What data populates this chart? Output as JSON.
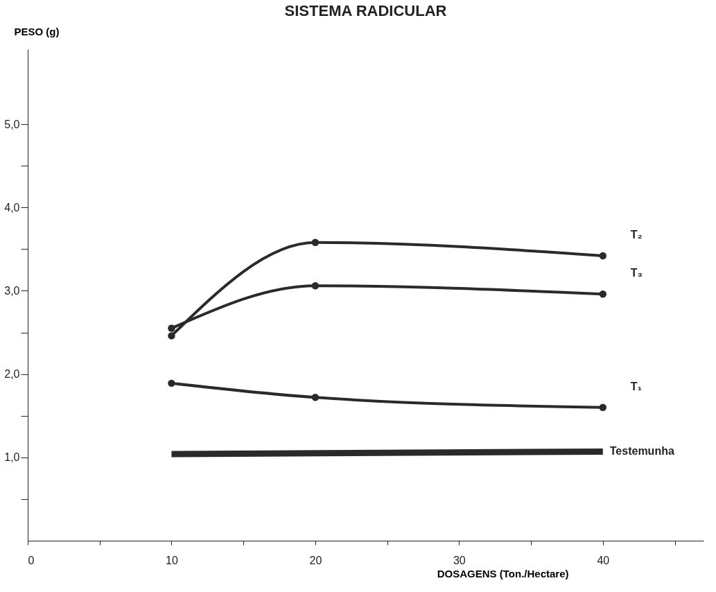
{
  "chart_data": {
    "type": "line",
    "title": "SISTEMA  RADICULAR",
    "xlabel": "DOSAGENS (Ton./Hectare)",
    "ylabel": "PESO (g)",
    "x": [
      10,
      20,
      40
    ],
    "series": [
      {
        "name": "T₂",
        "color": "#2a2a2a",
        "values": [
          2.46,
          3.58,
          3.42
        ]
      },
      {
        "name": "T₃",
        "color": "#2a2a2a",
        "values": [
          2.55,
          3.06,
          2.96
        ]
      },
      {
        "name": "T₁",
        "color": "#2a2a2a",
        "values": [
          1.89,
          1.72,
          1.6
        ]
      },
      {
        "name": "Testemunha",
        "color": "#2a2a2a",
        "x": [
          10,
          40
        ],
        "values": [
          1.04,
          1.07
        ],
        "marker": "none"
      }
    ],
    "xlim": [
      0,
      47
    ],
    "ylim": [
      0,
      5.9
    ],
    "xticks": [
      0,
      {
        "value": 5,
        "label": null
      },
      10,
      {
        "value": 15,
        "label": null
      },
      20,
      {
        "value": 25,
        "label": null
      },
      30,
      {
        "value": 35,
        "label": null
      },
      40,
      {
        "value": 45,
        "label": null
      }
    ],
    "yticks": [
      {
        "value": 0.5,
        "label": null
      },
      {
        "value": 1,
        "label": "1,0"
      },
      {
        "value": 1.5,
        "label": null
      },
      {
        "value": 2,
        "label": "2,0"
      },
      {
        "value": 2.5,
        "label": null
      },
      {
        "value": 3,
        "label": "3,0"
      },
      {
        "value": 3.5,
        "label": null
      },
      {
        "value": 4,
        "label": "4,0"
      },
      {
        "value": 4.5,
        "label": null
      },
      {
        "value": 5,
        "label": "5,0"
      }
    ],
    "grid": false,
    "marker": "circle"
  }
}
